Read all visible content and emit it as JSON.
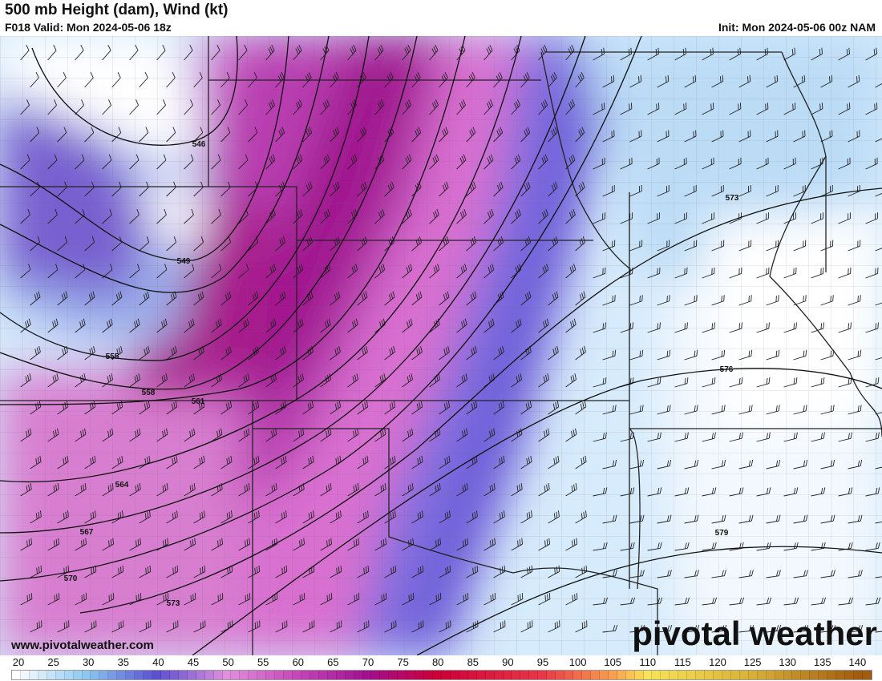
{
  "header": {
    "title": "500 mb Height (dam), Wind (kt)",
    "valid": "F018 Valid: Mon 2024-05-06 18z",
    "init": "Init: Mon 2024-05-06 00z NAM"
  },
  "footer": {
    "url": "www.pivotalweather.com",
    "brand": "pivotal weather"
  },
  "contours": {
    "units": "dam",
    "labels": [
      "546",
      "549",
      "555",
      "558",
      "561",
      "564",
      "567",
      "570",
      "573",
      "573",
      "576",
      "579"
    ]
  },
  "colorbar": {
    "units": "kt",
    "ticks": [
      "20",
      "25",
      "30",
      "35",
      "40",
      "45",
      "50",
      "55",
      "60",
      "65",
      "70",
      "75",
      "80",
      "85",
      "90",
      "95",
      "100",
      "105",
      "110",
      "115",
      "120",
      "125",
      "130",
      "135",
      "140"
    ],
    "stops": [
      {
        "kt": 20,
        "color": "#ffffff"
      },
      {
        "kt": 30,
        "color": "#8cc8f0"
      },
      {
        "kt": 40,
        "color": "#5a50d0"
      },
      {
        "kt": 50,
        "color": "#e090dc"
      },
      {
        "kt": 60,
        "color": "#c448b8"
      },
      {
        "kt": 70,
        "color": "#a01090"
      },
      {
        "kt": 80,
        "color": "#cc0038"
      },
      {
        "kt": 95,
        "color": "#e83848"
      },
      {
        "kt": 105,
        "color": "#f8a050"
      },
      {
        "kt": 110,
        "color": "#f8e458"
      },
      {
        "kt": 125,
        "color": "#d8b038"
      },
      {
        "kt": 140,
        "color": "#a05c10"
      }
    ]
  }
}
